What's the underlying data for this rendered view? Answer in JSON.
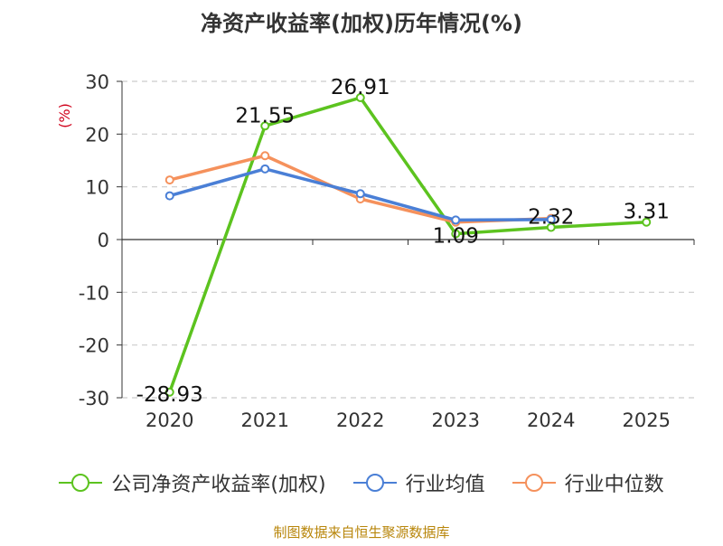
{
  "chart_data": {
    "type": "line",
    "title": "净资产收益率(加权)历年情况(%)",
    "ylabel": "(%)",
    "xlabel": "",
    "categories": [
      "2020",
      "2021",
      "2022",
      "2023",
      "2024",
      "2025"
    ],
    "ylim": [
      -30,
      30
    ],
    "yticks": [
      30,
      20,
      10,
      0,
      -10,
      -20,
      -30
    ],
    "grid": true,
    "legend_position": "bottom",
    "series": [
      {
        "name": "公司净资产收益率(加权)",
        "color": "#5cc31f",
        "values": [
          -28.93,
          21.55,
          26.91,
          1.09,
          2.32,
          3.31
        ],
        "labels": [
          "-28.93",
          "21.55",
          "26.91",
          "1.09",
          "2.32",
          "3.31"
        ]
      },
      {
        "name": "行业均值",
        "color": "#4a7fd6",
        "values": [
          8.3,
          13.4,
          8.7,
          3.7,
          3.8,
          null
        ]
      },
      {
        "name": "行业中位数",
        "color": "#f5915c",
        "values": [
          11.3,
          15.9,
          7.7,
          3.3,
          4.0,
          null
        ]
      }
    ]
  },
  "source": "制图数据来自恒生聚源数据库"
}
